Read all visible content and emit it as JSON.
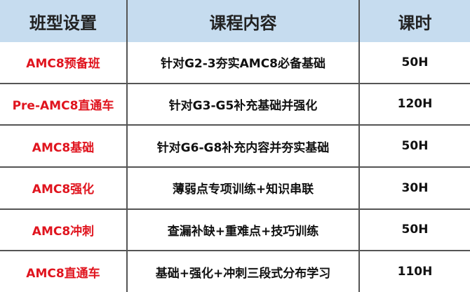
{
  "table": {
    "header": [
      "班型设置",
      "课程内容",
      "课时"
    ],
    "rows": [
      [
        "AMC8预备班",
        "针对G2-3夯实AMC8必备基础",
        "50H"
      ],
      [
        "Pre-AMC8直通车",
        "针对G3-G5补充基础并强化",
        "120H"
      ],
      [
        "AMC8基础",
        "针对G6-G8补充内容并夯实基础",
        "50H"
      ],
      [
        "AMC8强化",
        "薄弱点专项训练+知识串联",
        "30H"
      ],
      [
        "AMC8冲刺",
        "查漏补缺+重难点+技巧训练",
        "50H"
      ],
      [
        "AMC8直通车",
        "基础+强化+冲刺三段式分布学习",
        "110H"
      ]
    ]
  }
}
